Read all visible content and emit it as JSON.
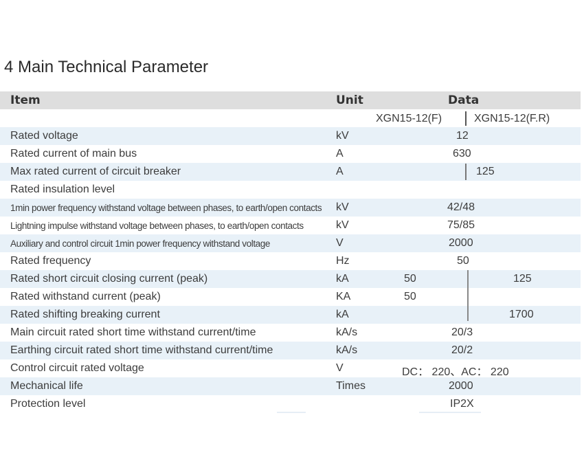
{
  "title": "4 Main Technical Parameter",
  "header": {
    "item": "Item",
    "unit": "Unit",
    "data": "Data"
  },
  "models": {
    "f": "XGN15-12(F)",
    "fr": "XGN15-12(F.R)"
  },
  "rows": [
    {
      "item": "Rated voltage",
      "unit": "kV",
      "v1": "12"
    },
    {
      "item": "Rated current of main bus",
      "unit": "A",
      "v1": "630"
    },
    {
      "item": "Max rated current of circuit breaker",
      "unit": "A",
      "v1": "125"
    },
    {
      "item": "Rated insulation level",
      "unit": ""
    },
    {
      "item": "1min power frequency withstand voltage between phases, to earth/open contacts",
      "unit": "kV",
      "v1": "42/48"
    },
    {
      "item": "Lightning impulse withstand voltage between phases, to earth/open contacts",
      "unit": "kV",
      "v1": "75/85"
    },
    {
      "item": "Auxiliary and control circuit 1min power frequency withstand voltage",
      "unit": "V",
      "v1": "2000"
    },
    {
      "item": "Rated frequency",
      "unit": "Hz",
      "v1": "50"
    },
    {
      "item": "Rated short circuit closing current (peak)",
      "unit": "kA",
      "v1": "50",
      "v2": "125"
    },
    {
      "item": "Rated withstand current (peak)",
      "unit": "KA",
      "v1": "50"
    },
    {
      "item": "Rated shifting breaking current",
      "unit": "kA",
      "v2": "1700"
    },
    {
      "item": "Main circuit rated short time withstand current/time",
      "unit": "kA/s",
      "v1": "20/3"
    },
    {
      "item": "Earthing circuit rated short time withstand current/time",
      "unit": "kA/s",
      "v1": "20/2"
    },
    {
      "item": "Control circuit rated voltage",
      "unit": "V",
      "v1": "DC： 220、AC： 220"
    },
    {
      "item": "Mechanical life",
      "unit": "Times",
      "v1": "2000"
    },
    {
      "item": "Protection level",
      "unit": "",
      "v1": "IP2X"
    }
  ]
}
